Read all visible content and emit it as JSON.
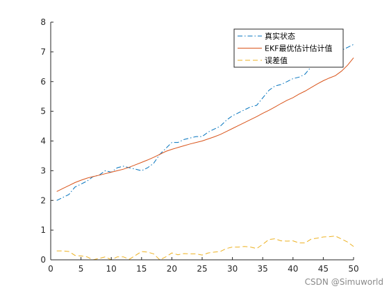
{
  "chart_data": {
    "type": "line",
    "title": "",
    "xlabel": "",
    "ylabel": "",
    "xlim": [
      0,
      50
    ],
    "ylim": [
      0,
      8
    ],
    "xticks": [
      0,
      5,
      10,
      15,
      20,
      25,
      30,
      35,
      40,
      45,
      50
    ],
    "yticks": [
      0,
      1,
      2,
      3,
      4,
      5,
      6,
      7,
      8
    ],
    "grid": false,
    "legend_position": "top-right",
    "x": [
      1,
      2,
      3,
      4,
      5,
      6,
      7,
      8,
      9,
      10,
      11,
      12,
      13,
      14,
      15,
      16,
      17,
      18,
      19,
      20,
      21,
      22,
      23,
      24,
      25,
      26,
      27,
      28,
      29,
      30,
      31,
      32,
      33,
      34,
      35,
      36,
      37,
      38,
      39,
      40,
      41,
      42,
      43,
      44,
      45,
      46,
      47,
      48,
      49,
      50
    ],
    "series": [
      {
        "name": "真实状态",
        "color": "#0072BD",
        "style": "dashdot",
        "values": [
          2.0,
          2.1,
          2.2,
          2.45,
          2.55,
          2.65,
          2.8,
          2.85,
          3.0,
          2.95,
          3.1,
          3.15,
          3.1,
          3.05,
          3.0,
          3.1,
          3.25,
          3.55,
          3.75,
          3.95,
          3.95,
          4.05,
          4.1,
          4.15,
          4.15,
          4.3,
          4.4,
          4.5,
          4.7,
          4.85,
          4.95,
          5.05,
          5.15,
          5.2,
          5.45,
          5.7,
          5.85,
          5.9,
          6.0,
          6.1,
          6.15,
          6.25,
          6.5,
          6.65,
          6.8,
          6.9,
          7.0,
          7.05,
          7.15,
          7.25
        ]
      },
      {
        "name": "EKF最优估计估计值",
        "color": "#D95319",
        "style": "solid",
        "values": [
          2.3,
          2.4,
          2.5,
          2.6,
          2.68,
          2.75,
          2.8,
          2.85,
          2.9,
          2.95,
          3.0,
          3.05,
          3.12,
          3.2,
          3.28,
          3.36,
          3.45,
          3.55,
          3.65,
          3.72,
          3.78,
          3.84,
          3.9,
          3.95,
          4.0,
          4.07,
          4.14,
          4.22,
          4.32,
          4.42,
          4.52,
          4.62,
          4.72,
          4.82,
          4.93,
          5.03,
          5.14,
          5.26,
          5.37,
          5.46,
          5.58,
          5.68,
          5.8,
          5.92,
          6.03,
          6.12,
          6.2,
          6.35,
          6.55,
          6.8
        ]
      },
      {
        "name": "误差值",
        "color": "#EDB120",
        "style": "dashed",
        "values": [
          0.3,
          0.3,
          0.28,
          0.15,
          0.13,
          0.1,
          0.0,
          0.05,
          0.1,
          0.0,
          0.1,
          0.1,
          0.02,
          0.15,
          0.28,
          0.26,
          0.2,
          0.0,
          0.1,
          0.23,
          0.17,
          0.21,
          0.2,
          0.2,
          0.16,
          0.23,
          0.26,
          0.28,
          0.38,
          0.43,
          0.43,
          0.45,
          0.43,
          0.38,
          0.52,
          0.68,
          0.71,
          0.64,
          0.63,
          0.64,
          0.57,
          0.57,
          0.7,
          0.73,
          0.77,
          0.78,
          0.8,
          0.7,
          0.6,
          0.45
        ]
      }
    ]
  },
  "watermark": "CSDN @Simuworld"
}
